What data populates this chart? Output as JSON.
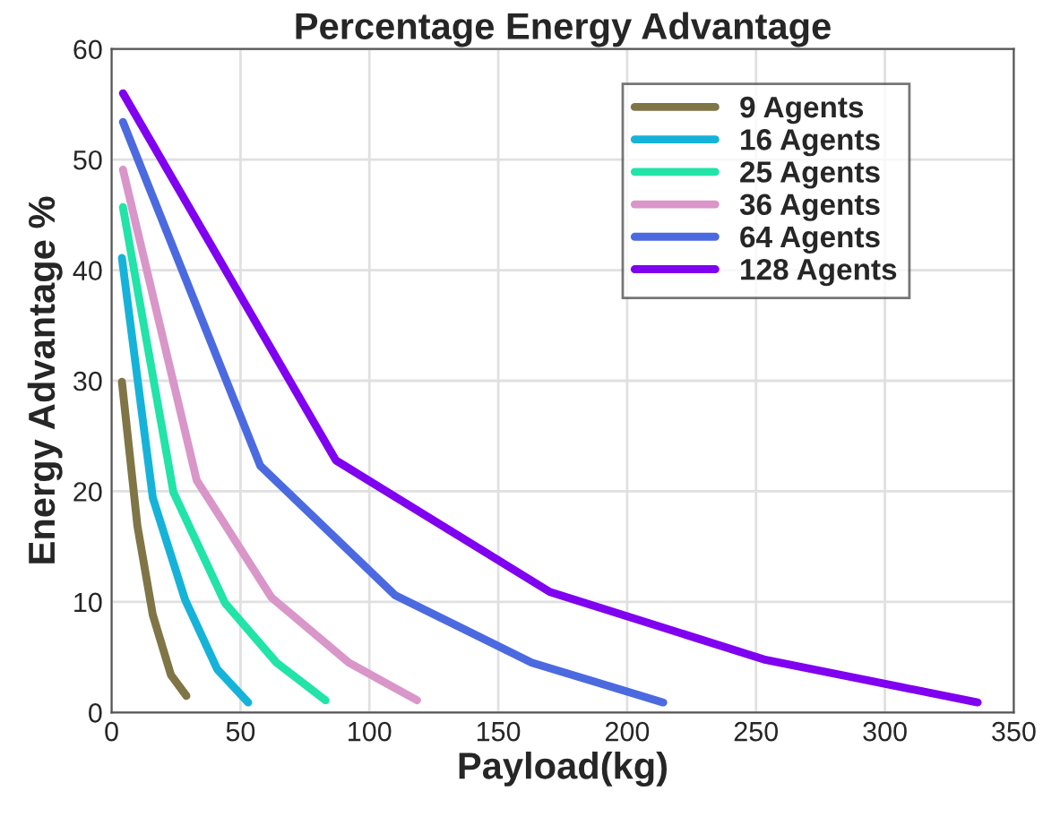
{
  "chart_data": {
    "type": "line",
    "title": "Percentage Energy Advantage",
    "xlabel": "Payload(kg)",
    "ylabel": "Energy Advantage %",
    "xlim": [
      0,
      350
    ],
    "xticks": [
      0,
      50,
      100,
      150,
      200,
      250,
      300,
      350
    ],
    "ylim": [
      0,
      60
    ],
    "yticks": [
      0,
      10,
      20,
      30,
      40,
      50,
      60
    ],
    "grid": true,
    "legend": "top right",
    "line_style": "solid",
    "series": [
      {
        "name": "9 Agents",
        "color": "#7f7547",
        "x": [
          4,
          10,
          16,
          23,
          29
        ],
        "values": [
          29.9,
          16.9,
          8.8,
          3.4,
          1.5
        ]
      },
      {
        "name": "16 Agents",
        "color": "#16b3d9",
        "x": [
          4,
          16,
          28.5,
          41,
          53
        ],
        "values": [
          41.1,
          19.4,
          10.2,
          3.9,
          0.9
        ]
      },
      {
        "name": "25 Agents",
        "color": "#22e3a8",
        "x": [
          4.4,
          24,
          44,
          64,
          83
        ],
        "values": [
          45.7,
          19.9,
          9.9,
          4.5,
          1.1
        ]
      },
      {
        "name": "36 Agents",
        "color": "#d996c9",
        "x": [
          4.4,
          33,
          62,
          92,
          118.5
        ],
        "values": [
          49.1,
          21,
          10.4,
          4.5,
          1.1
        ]
      },
      {
        "name": "64 Agents",
        "color": "#4c6ae0",
        "x": [
          4.4,
          57.7,
          110,
          163,
          214
        ],
        "values": [
          53.4,
          22.3,
          10.6,
          4.5,
          0.9
        ]
      },
      {
        "name": "128 Agents",
        "color": "#8000f0",
        "x": [
          4.4,
          87,
          170,
          253,
          336
        ],
        "values": [
          56,
          22.8,
          10.9,
          4.8,
          0.9
        ]
      }
    ]
  }
}
